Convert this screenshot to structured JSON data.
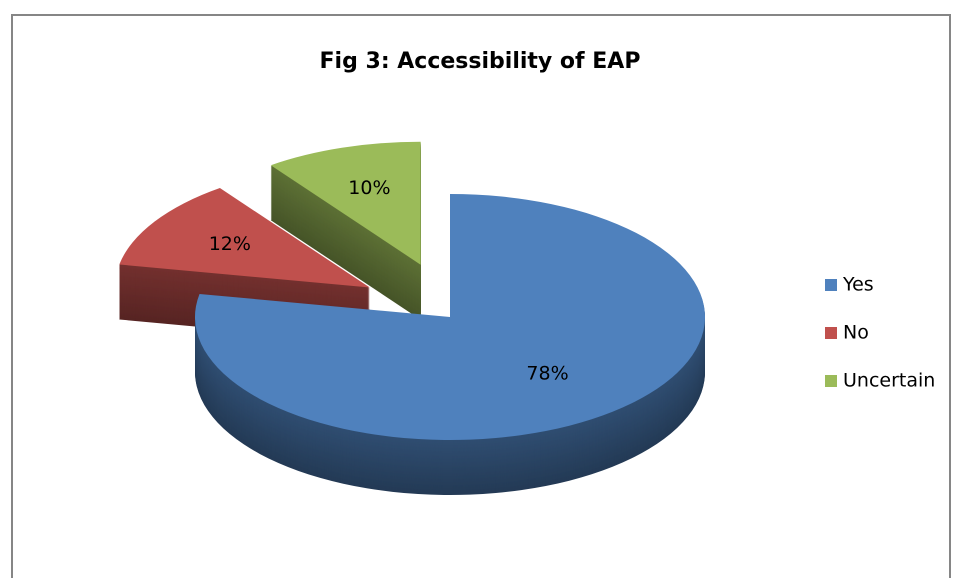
{
  "chart_data": {
    "type": "pie",
    "title": "Fig 3: Accessibility of EAP",
    "categories": [
      "Yes",
      "No",
      "Uncertain"
    ],
    "values": [
      78,
      12,
      10
    ],
    "value_labels": [
      "78%",
      "12%",
      "10%"
    ],
    "colors": [
      "#4f81bd",
      "#c0504d",
      "#9bbb59"
    ],
    "legend": "right"
  }
}
